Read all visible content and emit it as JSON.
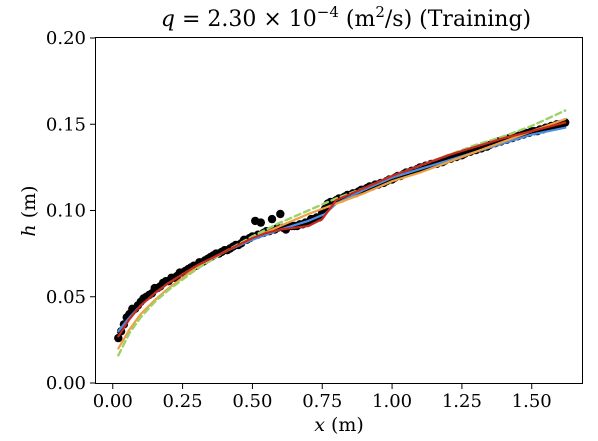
{
  "chart_data": {
    "type": "scatter",
    "title": {
      "var": "q",
      "eq": " = 2.30 × 10",
      "exp": "−4",
      "unit_open": " (m",
      "unit_sup": "2",
      "unit_close": "/s) (Training)"
    },
    "xlabel": {
      "var": "x",
      "unit": " (m)"
    },
    "ylabel": {
      "var": "h",
      "unit": " (m)"
    },
    "xlim": [
      -0.06,
      1.68
    ],
    "ylim": [
      0.0,
      0.2
    ],
    "xticks": [
      0.0,
      0.25,
      0.5,
      0.75,
      1.0,
      1.25,
      1.5
    ],
    "xtick_labels": [
      "0.00",
      "0.25",
      "0.50",
      "0.75",
      "1.00",
      "1.25",
      "1.50"
    ],
    "yticks": [
      0.0,
      0.05,
      0.1,
      0.15,
      0.2
    ],
    "ytick_labels": [
      "0.00",
      "0.05",
      "0.10",
      "0.15",
      "0.20"
    ],
    "grid": false,
    "colors": {
      "observed": "#000000",
      "fit_blue": "#4a8ee6",
      "fit_orange": "#f0a040",
      "fit_green_dashed": "#9bd26a",
      "fit_red": "#c8281e"
    },
    "series": [
      {
        "style": "scatter",
        "color": "#000000",
        "x": [
          0.02,
          0.03,
          0.04,
          0.05,
          0.06,
          0.07,
          0.08,
          0.09,
          0.1,
          0.11,
          0.12,
          0.13,
          0.14,
          0.15,
          0.16,
          0.17,
          0.18,
          0.19,
          0.2,
          0.21,
          0.22,
          0.23,
          0.24,
          0.25,
          0.26,
          0.27,
          0.28,
          0.29,
          0.3,
          0.31,
          0.32,
          0.33,
          0.34,
          0.35,
          0.36,
          0.37,
          0.38,
          0.39,
          0.4,
          0.41,
          0.42,
          0.43,
          0.44,
          0.45,
          0.46,
          0.47,
          0.48,
          0.49,
          0.5,
          0.51,
          0.52,
          0.53,
          0.54,
          0.55,
          0.56,
          0.57,
          0.58,
          0.59,
          0.6,
          0.61,
          0.62,
          0.63,
          0.64,
          0.65,
          0.66,
          0.67,
          0.68,
          0.69,
          0.7,
          0.71,
          0.72,
          0.73,
          0.74,
          0.75,
          0.76,
          0.77,
          0.78,
          0.79,
          0.8,
          0.81,
          0.82,
          0.83,
          0.84,
          0.85,
          0.86,
          0.87,
          0.88,
          0.89,
          0.9,
          0.91,
          0.92,
          0.93,
          0.94,
          0.95,
          0.96,
          0.97,
          0.98,
          0.99,
          1.0,
          1.01,
          1.02,
          1.03,
          1.04,
          1.05,
          1.06,
          1.07,
          1.08,
          1.09,
          1.1,
          1.11,
          1.12,
          1.13,
          1.14,
          1.15,
          1.16,
          1.17,
          1.18,
          1.19,
          1.2,
          1.21,
          1.22,
          1.23,
          1.24,
          1.25,
          1.26,
          1.27,
          1.28,
          1.29,
          1.3,
          1.31,
          1.32,
          1.33,
          1.34,
          1.35,
          1.36,
          1.37,
          1.38,
          1.39,
          1.4,
          1.41,
          1.42,
          1.43,
          1.44,
          1.45,
          1.46,
          1.47,
          1.48,
          1.49,
          1.5,
          1.51,
          1.52,
          1.53,
          1.54,
          1.55,
          1.56,
          1.57,
          1.58,
          1.59,
          1.6,
          1.61,
          1.62
        ],
        "y": [
          0.026,
          0.03,
          0.034,
          0.038,
          0.04,
          0.043,
          0.043,
          0.045,
          0.047,
          0.049,
          0.05,
          0.051,
          0.052,
          0.055,
          0.055,
          0.056,
          0.058,
          0.059,
          0.059,
          0.061,
          0.061,
          0.062,
          0.064,
          0.064,
          0.065,
          0.066,
          0.067,
          0.068,
          0.068,
          0.07,
          0.07,
          0.071,
          0.072,
          0.073,
          0.074,
          0.075,
          0.075,
          0.076,
          0.077,
          0.077,
          0.078,
          0.079,
          0.08,
          0.08,
          0.081,
          0.083,
          0.083,
          0.084,
          0.085,
          0.094,
          0.086,
          0.093,
          0.087,
          0.088,
          0.088,
          0.095,
          0.089,
          0.09,
          0.098,
          0.09,
          0.089,
          0.091,
          0.091,
          0.091,
          0.091,
          0.092,
          0.092,
          0.093,
          0.093,
          0.095,
          0.095,
          0.096,
          0.096,
          0.099,
          0.101,
          0.104,
          0.105,
          0.105,
          0.106,
          0.107,
          0.107,
          0.108,
          0.109,
          0.109,
          0.11,
          0.11,
          0.111,
          0.112,
          0.112,
          0.113,
          0.114,
          0.114,
          0.115,
          0.115,
          0.116,
          0.116,
          0.117,
          0.118,
          0.118,
          0.119,
          0.12,
          0.12,
          0.121,
          0.122,
          0.122,
          0.123,
          0.123,
          0.124,
          0.125,
          0.125,
          0.126,
          0.126,
          0.127,
          0.127,
          0.127,
          0.128,
          0.128,
          0.129,
          0.13,
          0.13,
          0.131,
          0.131,
          0.132,
          0.132,
          0.133,
          0.134,
          0.134,
          0.135,
          0.135,
          0.136,
          0.136,
          0.137,
          0.137,
          0.138,
          0.139,
          0.139,
          0.14,
          0.14,
          0.141,
          0.141,
          0.142,
          0.142,
          0.143,
          0.143,
          0.144,
          0.144,
          0.145,
          0.145,
          0.146,
          0.146,
          0.146,
          0.147,
          0.147,
          0.148,
          0.148,
          0.149,
          0.149,
          0.15,
          0.15,
          0.15,
          0.151
        ]
      },
      {
        "style": "line",
        "color": "#4a8ee6",
        "x": [
          0.02,
          0.06,
          0.1,
          0.15,
          0.2,
          0.3,
          0.4,
          0.5,
          0.6,
          0.7,
          0.76,
          0.8,
          0.9,
          1.0,
          1.1,
          1.2,
          1.3,
          1.4,
          1.5,
          1.62
        ],
        "y": [
          0.03,
          0.038,
          0.045,
          0.052,
          0.058,
          0.068,
          0.076,
          0.083,
          0.089,
          0.094,
          0.098,
          0.104,
          0.112,
          0.119,
          0.124,
          0.129,
          0.134,
          0.139,
          0.144,
          0.148
        ]
      },
      {
        "style": "line",
        "color": "#f0a040",
        "x": [
          0.02,
          0.06,
          0.1,
          0.15,
          0.2,
          0.3,
          0.4,
          0.5,
          0.6,
          0.7,
          0.8,
          0.9,
          1.0,
          1.1,
          1.2,
          1.3,
          1.4,
          1.5,
          1.62
        ],
        "y": [
          0.02,
          0.031,
          0.04,
          0.048,
          0.055,
          0.067,
          0.076,
          0.084,
          0.091,
          0.098,
          0.104,
          0.11,
          0.117,
          0.122,
          0.128,
          0.134,
          0.14,
          0.146,
          0.153
        ]
      },
      {
        "style": "dashed",
        "color": "#9bd26a",
        "x": [
          0.02,
          0.06,
          0.1,
          0.15,
          0.2,
          0.3,
          0.4,
          0.5,
          0.6,
          0.7,
          0.8,
          0.9,
          1.0,
          1.1,
          1.2,
          1.3,
          1.4,
          1.5,
          1.62
        ],
        "y": [
          0.016,
          0.029,
          0.038,
          0.047,
          0.054,
          0.066,
          0.076,
          0.085,
          0.093,
          0.1,
          0.107,
          0.113,
          0.12,
          0.126,
          0.132,
          0.138,
          0.143,
          0.149,
          0.158
        ]
      },
      {
        "style": "line",
        "color": "#c8281e",
        "x": [
          0.02,
          0.06,
          0.1,
          0.15,
          0.2,
          0.3,
          0.4,
          0.5,
          0.55,
          0.6,
          0.65,
          0.7,
          0.75,
          0.8,
          0.9,
          1.0,
          1.1,
          1.2,
          1.3,
          1.4,
          1.5,
          1.62
        ],
        "y": [
          0.027,
          0.037,
          0.045,
          0.052,
          0.058,
          0.068,
          0.076,
          0.084,
          0.087,
          0.089,
          0.09,
          0.091,
          0.095,
          0.106,
          0.113,
          0.12,
          0.126,
          0.132,
          0.137,
          0.142,
          0.146,
          0.151
        ]
      }
    ]
  }
}
